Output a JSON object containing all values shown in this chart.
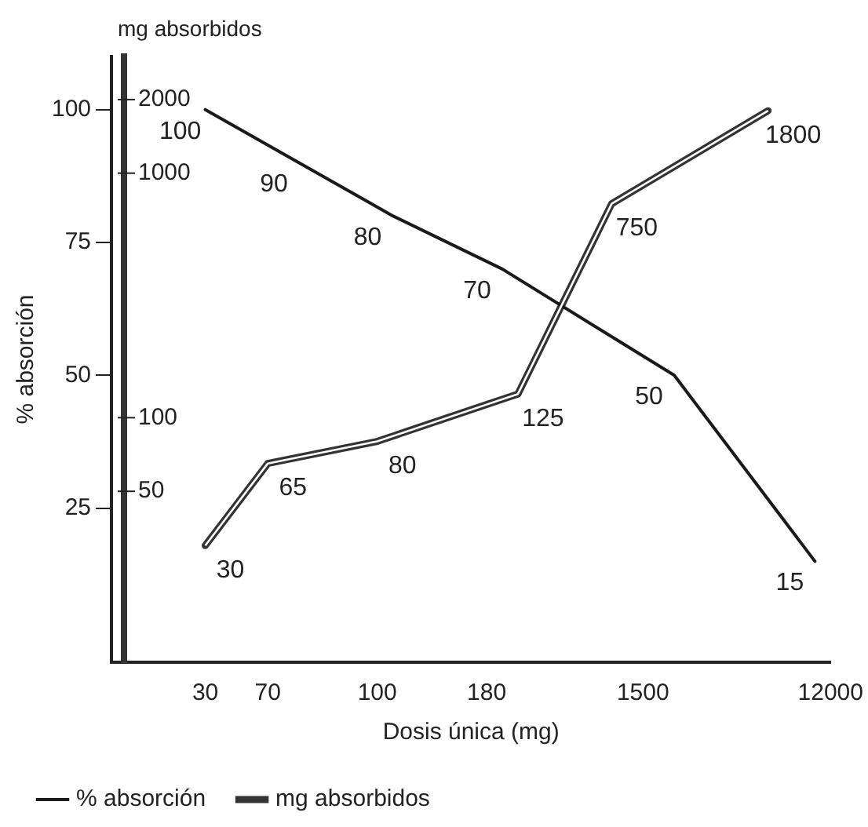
{
  "chart_data": {
    "type": "line",
    "xlabel": "Dosis única (mg)",
    "ylabel": "% absorción",
    "y2label": "mg absorbidos",
    "categories": [
      null,
      null,
      null,
      null,
      null,
      null,
      "30",
      null,
      null,
      null,
      "70",
      null,
      null,
      null,
      null,
      null,
      null,
      "100",
      null,
      null,
      null,
      null,
      null,
      null,
      "180",
      null,
      null,
      null,
      null,
      null,
      null,
      null,
      null,
      null,
      "1500",
      null,
      null,
      null,
      null,
      null,
      null,
      null,
      null,
      null,
      null,
      null,
      "12000"
    ],
    "series": [
      {
        "name": "% absorción",
        "color": "#1a1a1a",
        "values": [
          null,
          null,
          null,
          null,
          null,
          null,
          100,
          null,
          null,
          null,
          null,
          null,
          90,
          null,
          null,
          null,
          null,
          null,
          80,
          null,
          null,
          null,
          null,
          null,
          null,
          70,
          null,
          null,
          null,
          null,
          null,
          null,
          null,
          null,
          null,
          null,
          50,
          null,
          null,
          null,
          null,
          null,
          null,
          null,
          null,
          15,
          null
        ]
      },
      {
        "name": "mg absorbidos",
        "color": "#333333",
        "axis": "y2",
        "values": [
          null,
          null,
          null,
          null,
          null,
          null,
          30,
          null,
          null,
          null,
          65,
          null,
          null,
          null,
          null,
          null,
          null,
          80,
          null,
          null,
          null,
          null,
          null,
          null,
          null,
          null,
          125,
          null,
          null,
          null,
          null,
          null,
          750,
          null,
          null,
          null,
          null,
          null,
          null,
          null,
          null,
          null,
          1800,
          null,
          null,
          null,
          null
        ]
      }
    ],
    "data_labels": true,
    "log": "y2",
    "ylim": [
      -4,
      110
    ],
    "yticks": [
      25,
      50,
      75,
      100
    ],
    "y2lim": [
      10,
      3000
    ],
    "y2ticks": [
      50,
      100,
      1000,
      2000
    ],
    "grid": false,
    "legend": "bottom left",
    "marker": "none",
    "line_style": "solid"
  }
}
